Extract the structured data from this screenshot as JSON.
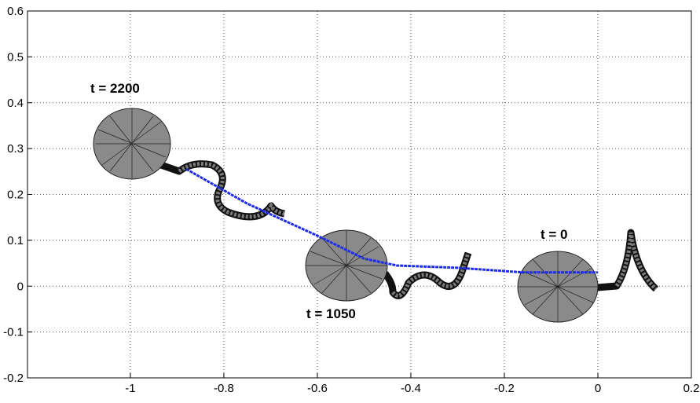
{
  "chart_data": {
    "type": "line",
    "xlim": [
      -1.22,
      0.2
    ],
    "xticks": [
      -1,
      -0.8,
      -0.6,
      -0.4,
      -0.2,
      0,
      0.2
    ],
    "ylim": [
      -0.2,
      0.6
    ],
    "yticks": [
      -0.2,
      -0.1,
      0,
      0.1,
      0.2,
      0.3,
      0.4,
      0.5,
      0.6
    ],
    "grid": true,
    "series": [
      {
        "color": "#1f2ee6",
        "x": [
          -0.88,
          -0.75,
          -0.6,
          -0.5,
          -0.43,
          -0.3,
          -0.16,
          -0.05,
          0
        ],
        "values": [
          0.255,
          0.18,
          0.11,
          0.06,
          0.045,
          0.04,
          0.03,
          0.03,
          0.03
        ]
      }
    ],
    "annotations": [
      "t = 2200",
      "t = 1050",
      "t = 0"
    ]
  }
}
